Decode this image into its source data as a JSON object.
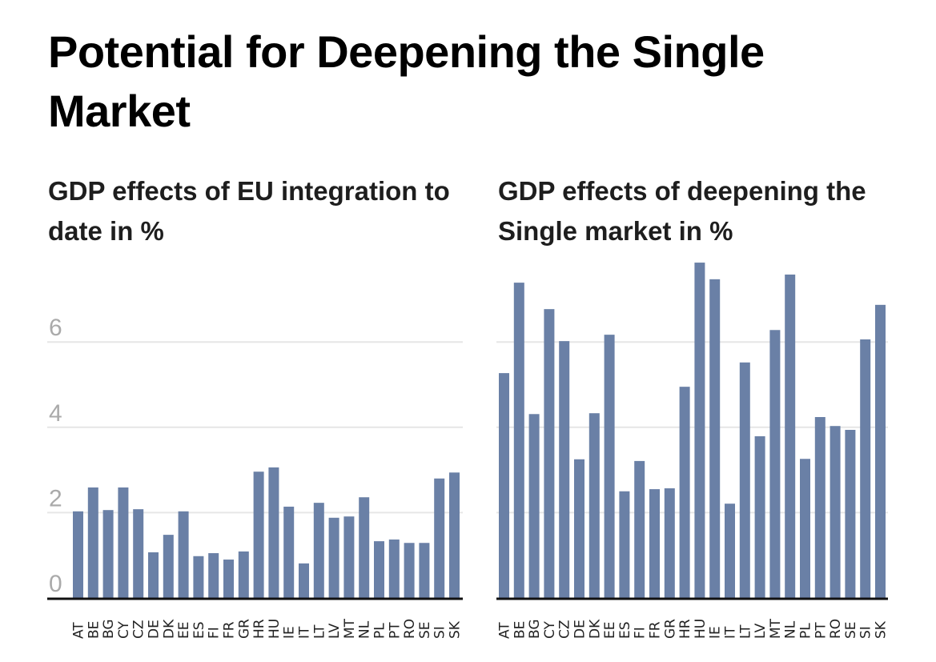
{
  "title": "Potential for Deepening the Single Market",
  "colors": {
    "bar": "#6a80a6",
    "grid": "#e6e6e6",
    "axis": "#111111",
    "tick": "#aaaaaa"
  },
  "chart_data": [
    {
      "type": "bar",
      "title": "GDP effects of EU integration to date in %",
      "xlabel": "",
      "ylabel": "",
      "ylim": [
        0,
        6.5
      ],
      "yticks": [
        0,
        2,
        4,
        6
      ],
      "grid": true,
      "legend": "none",
      "categories": [
        "AT",
        "BE",
        "BG",
        "CY",
        "CZ",
        "DE",
        "DK",
        "EE",
        "ES",
        "FI",
        "FR",
        "GR",
        "HR",
        "HU",
        "IE",
        "IT",
        "LT",
        "LV",
        "MT",
        "NL",
        "PL",
        "PT",
        "RO",
        "SE",
        "SI",
        "SK"
      ],
      "values": [
        2.03,
        2.59,
        2.06,
        2.59,
        2.08,
        1.07,
        1.48,
        2.03,
        0.98,
        1.05,
        0.9,
        1.09,
        2.96,
        3.06,
        2.14,
        0.81,
        2.23,
        1.88,
        1.91,
        2.36,
        1.33,
        1.37,
        1.29,
        1.29,
        2.8,
        2.94
      ]
    },
    {
      "type": "bar",
      "title": "GDP effects of deepening the Single market in %",
      "xlabel": "",
      "ylabel": "",
      "ylim": [
        0,
        6.5
      ],
      "yticks": [
        0,
        2,
        4,
        6
      ],
      "show_ytick_labels": false,
      "grid": true,
      "legend": "none",
      "categories": [
        "AT",
        "BE",
        "BG",
        "CY",
        "CZ",
        "DE",
        "DK",
        "EE",
        "ES",
        "FI",
        "FR",
        "GR",
        "HR",
        "HU",
        "IE",
        "IT",
        "LT",
        "LV",
        "MT",
        "NL",
        "PL",
        "PT",
        "RO",
        "SE",
        "SI",
        "SK"
      ],
      "values": [
        5.27,
        7.39,
        4.31,
        6.77,
        6.02,
        3.25,
        4.33,
        6.17,
        2.5,
        3.21,
        2.55,
        2.57,
        4.95,
        7.86,
        7.47,
        2.21,
        5.52,
        3.79,
        6.28,
        7.58,
        3.26,
        4.24,
        4.03,
        3.94,
        6.06,
        6.87
      ]
    }
  ]
}
